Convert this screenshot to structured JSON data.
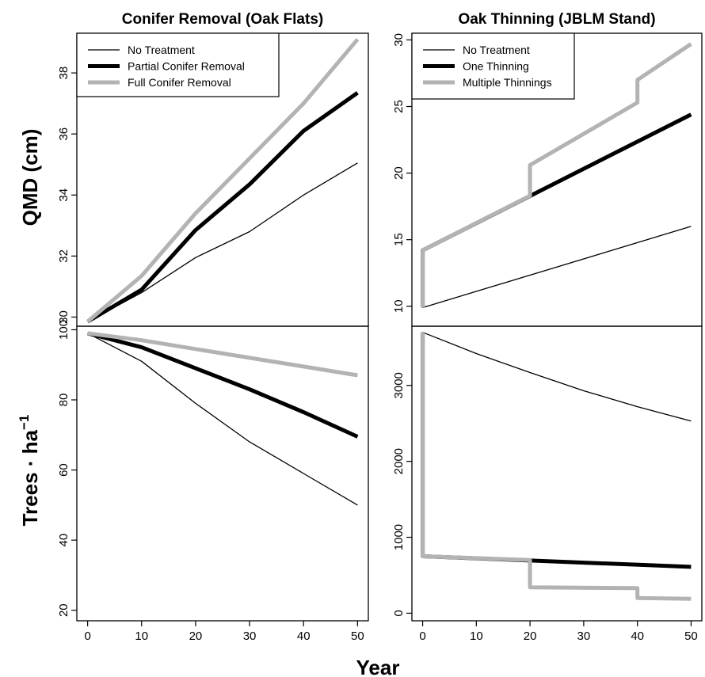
{
  "figure": {
    "ylabel_top": "QMD (cm)",
    "ylabel_bottom_base": "Trees · ha",
    "ylabel_bottom_exp": "−1",
    "xlabel": "Year"
  },
  "chart_data": [
    {
      "id": "qmd-conifer",
      "type": "line",
      "title": "Conifer Removal (Oak Flats)",
      "xlabel": "",
      "ylabel": "QMD (cm)",
      "x": [
        0,
        10,
        20,
        30,
        40,
        50
      ],
      "xlim": [
        -2,
        52
      ],
      "ylim": [
        29.7,
        39.3
      ],
      "yticks": [
        30,
        32,
        34,
        36,
        38
      ],
      "legend": "top-left",
      "series": [
        {
          "name": "No Treatment",
          "style": "thin",
          "color": "#000000",
          "x": [
            0,
            10,
            20,
            30,
            40,
            50
          ],
          "y": [
            29.85,
            30.8,
            31.95,
            32.8,
            34.0,
            35.05
          ]
        },
        {
          "name": "Partial Conifer Removal",
          "style": "thick",
          "color": "#000000",
          "x": [
            0,
            10,
            20,
            30,
            40,
            50
          ],
          "y": [
            29.85,
            30.9,
            32.85,
            34.35,
            36.1,
            37.35
          ]
        },
        {
          "name": "Full Conifer Removal",
          "style": "gray",
          "color": "#b3b3b3",
          "x": [
            0,
            10,
            20,
            30,
            40,
            50
          ],
          "y": [
            29.85,
            31.35,
            33.4,
            35.2,
            37.0,
            39.1
          ]
        }
      ]
    },
    {
      "id": "qmd-oak",
      "type": "line",
      "title": "Oak Thinning (JBLM Stand)",
      "xlabel": "",
      "ylabel": "",
      "x": [
        0,
        10,
        20,
        30,
        40,
        50
      ],
      "xlim": [
        -2,
        52
      ],
      "ylim": [
        8.5,
        30.5
      ],
      "yticks": [
        10,
        15,
        20,
        25,
        30
      ],
      "legend": "top-left",
      "series": [
        {
          "name": "No Treatment",
          "style": "thin",
          "color": "#000000",
          "x": [
            0,
            50
          ],
          "y": [
            9.9,
            16.0
          ]
        },
        {
          "name": "One Thinning",
          "style": "thick",
          "color": "#000000",
          "x": [
            0,
            0,
            50
          ],
          "y": [
            9.9,
            14.2,
            24.4
          ]
        },
        {
          "name": "Multiple Thinnings",
          "style": "gray",
          "color": "#b3b3b3",
          "x": [
            0,
            0,
            20,
            20,
            40,
            40,
            50
          ],
          "y": [
            9.9,
            14.2,
            18.3,
            20.6,
            25.3,
            27.0,
            29.7
          ]
        }
      ]
    },
    {
      "id": "trees-conifer",
      "type": "line",
      "title": "",
      "xlabel": "Year",
      "ylabel": "Trees · ha⁻¹",
      "x": [
        0,
        10,
        20,
        30,
        40,
        50
      ],
      "xlim": [
        -2,
        52
      ],
      "ylim": [
        17,
        101
      ],
      "yticks": [
        20,
        40,
        60,
        80,
        100
      ],
      "xticks": [
        0,
        10,
        20,
        30,
        40,
        50
      ],
      "series": [
        {
          "name": "No Treatment",
          "style": "thin",
          "color": "#000000",
          "x": [
            0,
            10,
            20,
            30,
            40,
            50
          ],
          "y": [
            99,
            91,
            79,
            68,
            59,
            50
          ]
        },
        {
          "name": "Partial Conifer Removal",
          "style": "thick",
          "color": "#000000",
          "x": [
            0,
            10,
            20,
            30,
            40,
            50
          ],
          "y": [
            99,
            95,
            89,
            83,
            76.5,
            69.5
          ]
        },
        {
          "name": "Full Conifer Removal",
          "style": "gray",
          "color": "#b3b3b3",
          "x": [
            0,
            10,
            20,
            30,
            40,
            50
          ],
          "y": [
            99,
            97,
            94.5,
            92,
            89.5,
            87
          ]
        }
      ]
    },
    {
      "id": "trees-oak",
      "type": "line",
      "title": "",
      "xlabel": "Year",
      "ylabel": "",
      "x": [
        0,
        10,
        20,
        30,
        40,
        50
      ],
      "xlim": [
        -2,
        52
      ],
      "ylim": [
        -100,
        3780
      ],
      "yticks": [
        0,
        1000,
        2000,
        3000
      ],
      "xticks": [
        0,
        10,
        20,
        30,
        40,
        50
      ],
      "series": [
        {
          "name": "No Treatment",
          "style": "thin",
          "color": "#000000",
          "x": [
            0,
            10,
            20,
            30,
            40,
            50
          ],
          "y": [
            3700,
            3420,
            3170,
            2930,
            2720,
            2530
          ]
        },
        {
          "name": "One Thinning",
          "style": "thick",
          "color": "#000000",
          "x": [
            0,
            0,
            50
          ],
          "y": [
            3700,
            750,
            610
          ]
        },
        {
          "name": "Multiple Thinnings",
          "style": "gray",
          "color": "#b3b3b3",
          "x": [
            0,
            0,
            20,
            20,
            40,
            40,
            50
          ],
          "y": [
            3700,
            750,
            700,
            340,
            330,
            200,
            190
          ]
        }
      ]
    }
  ]
}
